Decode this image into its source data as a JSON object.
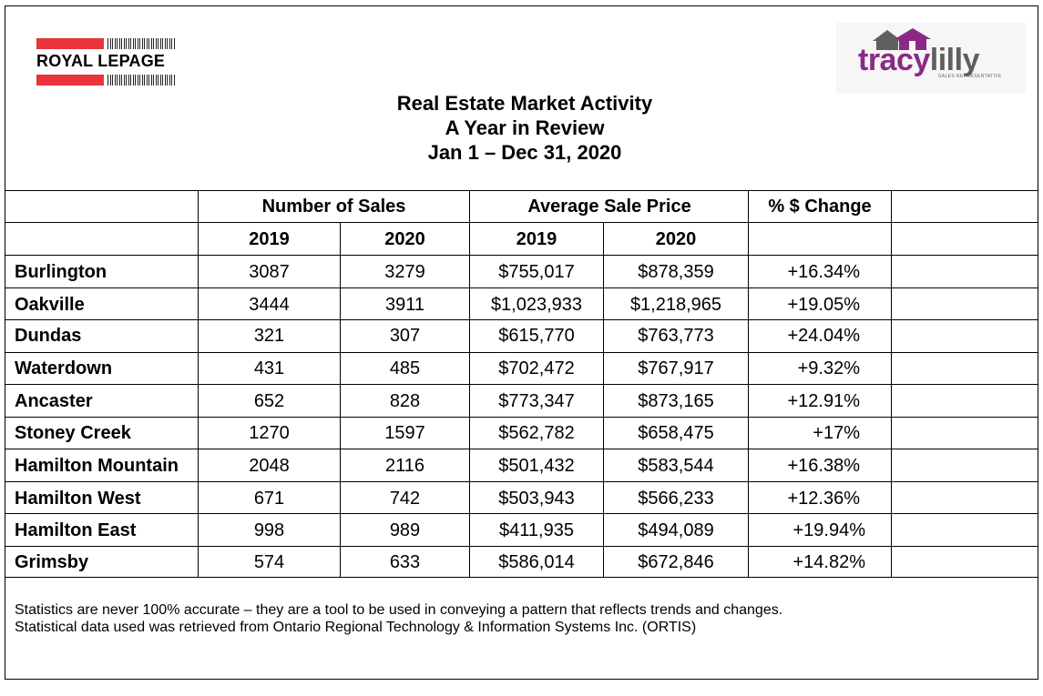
{
  "brands": {
    "left_logo_text": "ROYAL LEPAGE",
    "right_logo_text_a": "tracy",
    "right_logo_text_b": "lilly",
    "right_logo_subtitle": "SALES REPRESENTATIVE",
    "colors": {
      "royal_lepage_red": "#e8343a",
      "tracy_purple": "#8a2a86",
      "lilly_gray": "#5f5f5f"
    }
  },
  "title": {
    "line1": "Real Estate Market Activity",
    "line2": "A Year in Review",
    "line3": "Jan 1 – Dec 31, 2020"
  },
  "table": {
    "group_headers": {
      "sales": "Number of Sales",
      "price": "Average Sale Price",
      "change": "% $ Change"
    },
    "year_headers": {
      "sales_a": "2019",
      "sales_b": "2020",
      "price_a": "2019",
      "price_b": "2020"
    },
    "rows": [
      {
        "city": "Burlington",
        "sales_2019": "3087",
        "sales_2020": "3279",
        "price_2019": "$755,017",
        "price_2020": "$878,359",
        "change": "+16.34%"
      },
      {
        "city": "Oakville",
        "sales_2019": "3444",
        "sales_2020": "3911",
        "price_2019": "$1,023,933",
        "price_2020": "$1,218,965",
        "change": "+19.05%"
      },
      {
        "city": "Dundas",
        "sales_2019": "321",
        "sales_2020": "307",
        "price_2019": "$615,770",
        "price_2020": "$763,773",
        "change": "+24.04%"
      },
      {
        "city": "Waterdown",
        "sales_2019": "431",
        "sales_2020": "485",
        "price_2019": "$702,472",
        "price_2020": "$767,917",
        "change": "+9.32%"
      },
      {
        "city": "Ancaster",
        "sales_2019": "652",
        "sales_2020": "828",
        "price_2019": "$773,347",
        "price_2020": "$873,165",
        "change": "+12.91%"
      },
      {
        "city": "Stoney Creek",
        "sales_2019": "1270",
        "sales_2020": "1597",
        "price_2019": "$562,782",
        "price_2020": "$658,475",
        "change": "+17%"
      },
      {
        "city": "Hamilton Mountain",
        "sales_2019": "2048",
        "sales_2020": "2116",
        "price_2019": "$501,432",
        "price_2020": "$583,544",
        "change": "+16.38%"
      },
      {
        "city": "Hamilton West",
        "sales_2019": "671",
        "sales_2020": "742",
        "price_2019": "$503,943",
        "price_2020": "$566,233",
        "change": "+12.36%"
      },
      {
        "city": "Hamilton East",
        "sales_2019": "998",
        "sales_2020": "989",
        "price_2019": "$411,935",
        "price_2020": "$494,089",
        "change": "+19.94%"
      },
      {
        "city": "Grimsby",
        "sales_2019": "574",
        "sales_2020": "633",
        "price_2019": "$586,014",
        "price_2020": "$672,846",
        "change": "+14.82%"
      }
    ]
  },
  "notes": {
    "line1": "Statistics are never 100% accurate – they are a tool to be used in conveying a pattern that reflects trends and changes.",
    "line2": "Statistical data used was retrieved from Ontario Regional Technology & Information Systems Inc. (ORTIS)"
  }
}
